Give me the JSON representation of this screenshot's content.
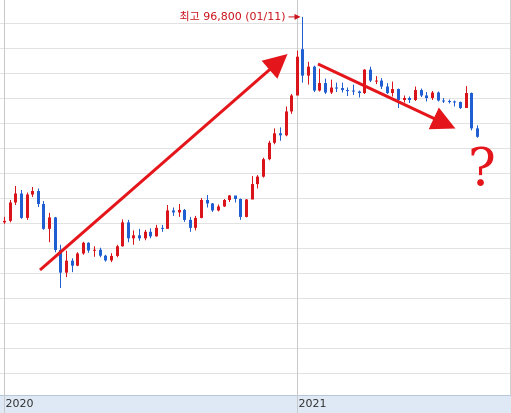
{
  "chart_data": {
    "type": "candlestick",
    "categories": [
      "2020",
      null,
      null,
      null,
      null,
      null,
      null,
      null,
      null,
      null,
      null,
      null,
      null,
      null,
      null,
      null,
      null,
      null,
      null,
      null,
      null,
      null,
      null,
      null,
      null,
      null,
      null,
      null,
      null,
      null,
      null,
      null,
      null,
      null,
      null,
      null,
      null,
      null,
      null,
      null,
      null,
      null,
      null,
      null,
      null,
      null,
      null,
      null,
      null,
      null,
      null,
      null,
      "2021",
      null,
      null,
      null,
      null,
      null,
      null,
      null,
      null,
      null,
      null,
      null,
      null,
      null,
      null,
      null,
      null,
      null,
      null,
      null,
      null,
      null,
      null,
      null,
      null,
      null,
      null,
      null,
      null,
      null,
      null,
      null,
      null
    ],
    "open": [
      55500,
      55800,
      59500,
      61300,
      56400,
      61100,
      61800,
      59200,
      54200,
      56500,
      49950,
      45400,
      47800,
      46800,
      49250,
      51400,
      49850,
      50000,
      48800,
      47850,
      48750,
      50700,
      55500,
      52300,
      52900,
      52300,
      53600,
      52700,
      54400,
      54200,
      57900,
      57500,
      58000,
      56000,
      54400,
      56400,
      60000,
      59300,
      57900,
      58700,
      60000,
      60900,
      60200,
      56600,
      60100,
      63200,
      64700,
      68200,
      71500,
      73400,
      73000,
      77800,
      81000,
      90300,
      85000,
      86800,
      82000,
      83500,
      81600,
      82600,
      82500,
      82100,
      82000,
      81800,
      81500,
      86200,
      84000,
      84000,
      82800,
      81500,
      82300,
      80100,
      80500,
      80100,
      82100,
      81000,
      80500,
      81600,
      80000,
      79900,
      79800,
      79700,
      78500,
      81500,
      74400
    ],
    "high": [
      56600,
      60000,
      62800,
      62000,
      61500,
      62600,
      62300,
      59800,
      57400,
      56600,
      51000,
      49800,
      48300,
      49500,
      51600,
      51500,
      50700,
      50400,
      49000,
      49300,
      51000,
      56100,
      56000,
      53900,
      54200,
      54000,
      54300,
      55000,
      55000,
      59000,
      58500,
      59200,
      58200,
      56600,
      56800,
      60400,
      61000,
      59400,
      59100,
      60200,
      61000,
      60900,
      60300,
      60200,
      64800,
      65000,
      68500,
      71900,
      74400,
      74600,
      78800,
      81300,
      90000,
      96800,
      87800,
      87000,
      86400,
      84400,
      84200,
      83600,
      83600,
      82600,
      83200,
      82000,
      86300,
      86800,
      84900,
      84500,
      83500,
      83800,
      82400,
      81000,
      80800,
      82800,
      82400,
      81700,
      81900,
      81800,
      80500,
      80200,
      80000,
      79800,
      82900,
      81600,
      75000
    ],
    "low": [
      55200,
      55500,
      59000,
      56200,
      56000,
      60600,
      58600,
      54000,
      51500,
      49500,
      42300,
      44500,
      45500,
      46700,
      49000,
      49400,
      48600,
      48500,
      47600,
      47500,
      48500,
      50600,
      51500,
      51000,
      51800,
      51900,
      52300,
      52600,
      53600,
      54200,
      56800,
      56600,
      55600,
      53600,
      53900,
      56300,
      58500,
      57600,
      57700,
      58600,
      59600,
      59500,
      56000,
      56500,
      60100,
      62300,
      64500,
      68000,
      71200,
      71900,
      72800,
      77300,
      81000,
      83600,
      83200,
      81700,
      81800,
      81300,
      81300,
      81700,
      81600,
      80900,
      81100,
      80600,
      81300,
      83700,
      83300,
      82300,
      81300,
      80800,
      78500,
      79600,
      79500,
      79900,
      80700,
      79800,
      80100,
      79800,
      79500,
      79400,
      78800,
      78300,
      78500,
      74000,
      72500
    ],
    "close": [
      55800,
      59500,
      61300,
      56400,
      61100,
      61800,
      59200,
      54200,
      56500,
      49950,
      45400,
      47800,
      46800,
      49250,
      51400,
      49850,
      50000,
      48800,
      47850,
      48750,
      50700,
      55500,
      52300,
      52900,
      52300,
      53600,
      52700,
      54400,
      54200,
      57900,
      57500,
      58000,
      56000,
      54400,
      56400,
      60000,
      59300,
      57900,
      58700,
      60000,
      60900,
      60200,
      56600,
      60100,
      63200,
      64700,
      68200,
      71500,
      73400,
      73000,
      77800,
      81000,
      88800,
      85000,
      86800,
      82000,
      83500,
      81600,
      82600,
      82500,
      82100,
      82000,
      81800,
      81500,
      86200,
      84000,
      84000,
      82800,
      81500,
      82300,
      80100,
      80500,
      80100,
      82100,
      81000,
      80500,
      81600,
      80000,
      79900,
      79800,
      79700,
      78500,
      81500,
      74400,
      72700
    ],
    "up_color": "#d9141b",
    "down_color": "#1f5fd1",
    "ylim": [
      20800,
      100200
    ],
    "annotations": [
      "최고 96,800 (01/11)",
      "?"
    ]
  }
}
